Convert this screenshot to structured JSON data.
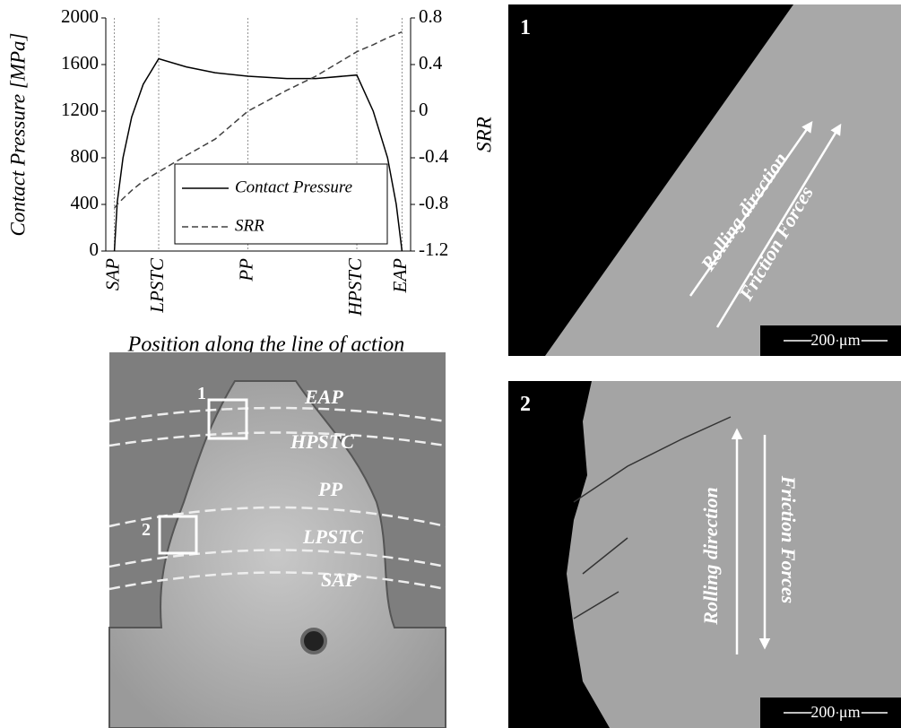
{
  "chart_data": {
    "type": "line",
    "x_label": "Position along the line of action",
    "y_label": "Contact Pressure [MPa]",
    "y2_label": "SRR",
    "x": [
      0,
      1,
      3,
      6,
      10,
      15.4,
      25,
      35,
      46.4,
      60,
      70,
      84.3,
      90,
      95,
      98,
      100
    ],
    "series": [
      {
        "name": "Contact Pressure",
        "color": "#000000",
        "dash": "solid",
        "values": [
          0,
          420,
          800,
          1150,
          1430,
          1650,
          1580,
          1530,
          1500,
          1480,
          1480,
          1510,
          1200,
          800,
          400,
          0
        ]
      },
      {
        "name": "SRR",
        "color": "#404040",
        "dash": "dashed",
        "axis": "y2",
        "values": [
          -0.83,
          -0.8,
          -0.75,
          -0.68,
          -0.6,
          -0.52,
          -0.38,
          -0.24,
          0,
          0.18,
          0.3,
          0.51,
          0.57,
          0.63,
          0.66,
          0.68
        ]
      }
    ],
    "xlim": [
      -3,
      103
    ],
    "xticks": [
      {
        "value": 0,
        "label": "SAP"
      },
      {
        "value": 15.4,
        "label": "LPSTC"
      },
      {
        "value": 46.4,
        "label": "PP"
      },
      {
        "value": 84.3,
        "label": "HPSTC"
      },
      {
        "value": 100,
        "label": "EAP"
      }
    ],
    "ylim": [
      0,
      2000
    ],
    "yticks": [
      0,
      400,
      800,
      1200,
      1600,
      2000
    ],
    "y2lim": [
      -1.2,
      0.8
    ],
    "y2ticks": [
      -1.2,
      -0.8,
      -0.4,
      0,
      0.4,
      0.8
    ],
    "grid": "x-dotted"
  },
  "tooth_image": {
    "lines": [
      "EAP",
      "HPSTC",
      "PP",
      "LPSTC",
      "SAP"
    ],
    "boxes": [
      "1",
      "2"
    ]
  },
  "micrograph_1": {
    "label": "1",
    "rolling": "Rolling direction",
    "friction": "Friction Forces",
    "scale": "200 μm"
  },
  "micrograph_2": {
    "label": "2",
    "rolling": "Rolling direction",
    "friction": "Friction Forces",
    "scale": "200 μm"
  }
}
